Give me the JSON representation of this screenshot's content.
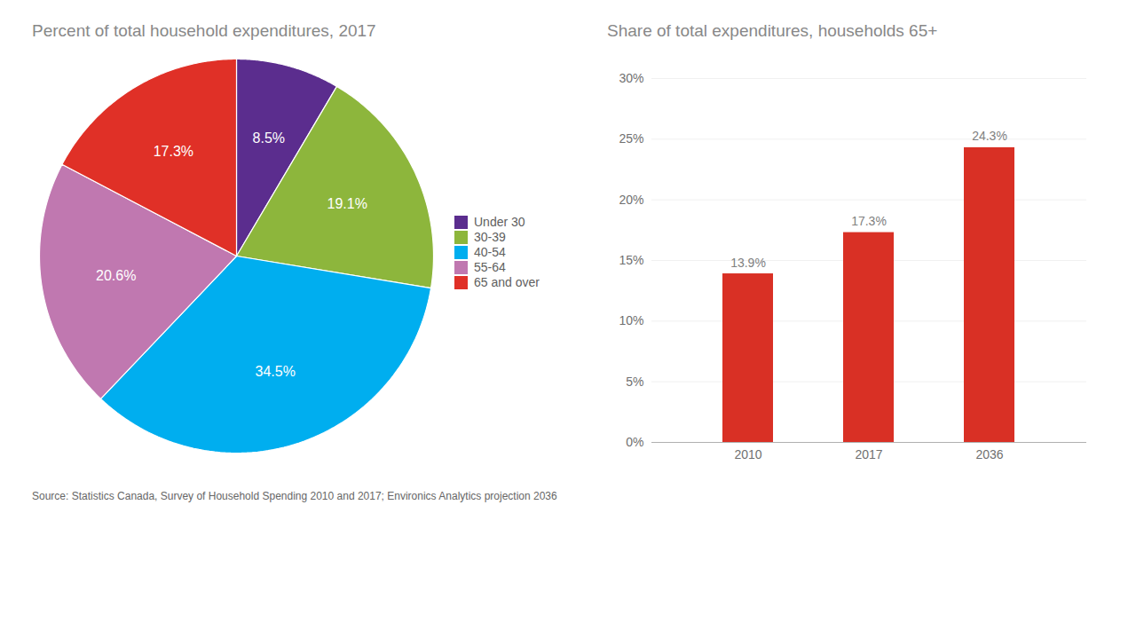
{
  "chart_data": [
    {
      "type": "pie",
      "title": "Percent of total household expenditures, 2017",
      "categories": [
        "Under 30",
        "30-39",
        "40-54",
        "55-64",
        "65 and over"
      ],
      "values": [
        8.5,
        19.1,
        34.5,
        20.6,
        17.3
      ],
      "value_labels": [
        "8.5%",
        "19.1%",
        "34.5%",
        "20.6%",
        "17.3%"
      ],
      "colors": [
        "#5b2d8e",
        "#8db63c",
        "#00aeef",
        "#c078b0",
        "#e03027"
      ],
      "data_labels": true,
      "legend": "right"
    },
    {
      "type": "bar",
      "title": "Share of total expenditures, households 65+",
      "categories": [
        "2010",
        "2017",
        "2036"
      ],
      "values": [
        13.9,
        17.3,
        24.3
      ],
      "value_labels": [
        "13.9%",
        "17.3%",
        "24.3%"
      ],
      "color": "#d93025",
      "ylim": [
        0,
        30
      ],
      "yticks": [
        {
          "value": 0,
          "label": "0%"
        },
        {
          "value": 5,
          "label": "5%"
        },
        {
          "value": 10,
          "label": "10%"
        },
        {
          "value": 15,
          "label": "15%"
        },
        {
          "value": 20,
          "label": "20%"
        },
        {
          "value": 25,
          "label": "25%"
        },
        {
          "value": 30,
          "label": "30%"
        }
      ],
      "grid": true,
      "data_labels": true
    }
  ],
  "caption": "Source: Statistics Canada, Survey of Household Spending 2010 and 2017; Environics Analytics projection 2036"
}
